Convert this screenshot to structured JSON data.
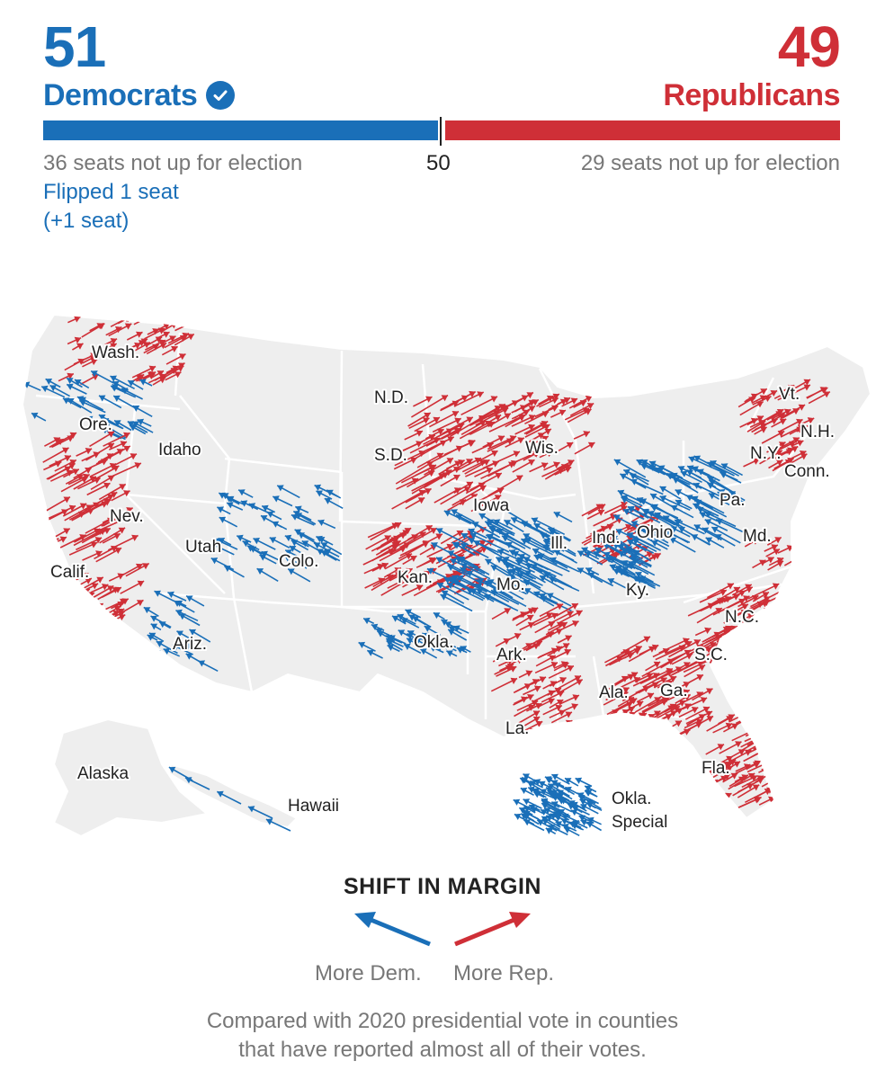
{
  "header": {
    "dem_count": "51",
    "dem_label": "Democrats",
    "rep_count": "49",
    "rep_label": "Republicans",
    "majority_mark": "50",
    "dem_not_up": "36 seats not up for election",
    "rep_not_up": "29 seats not up for election",
    "dem_flipped": "Flipped 1 seat",
    "dem_net": "(+1 seat)"
  },
  "colors": {
    "dem": "#1a6fb8",
    "rep": "#cf2f37",
    "land": "#eeeeee",
    "border": "#ffffff"
  },
  "map": {
    "labels": {
      "wash": "Wash.",
      "ore": "Ore.",
      "idaho": "Idaho",
      "nev": "Nev.",
      "calif": "Calif.",
      "utah": "Utah",
      "colo": "Colo.",
      "ariz": "Ariz.",
      "nd": "N.D.",
      "sd": "S.D.",
      "kan": "Kan.",
      "okla": "Okla.",
      "iowa": "Iowa",
      "mo": "Mo.",
      "ark": "Ark.",
      "la": "La.",
      "wis": "Wis.",
      "ill": "Ill.",
      "ind": "Ind.",
      "ohio": "Ohio",
      "ky": "Ky.",
      "ala": "Ala.",
      "ga": "Ga.",
      "fla": "Fla.",
      "sc": "S.C.",
      "nc": "N.C.",
      "md": "Md.",
      "pa": "Pa.",
      "ny": "N.Y.",
      "vt": "Vt.",
      "nh": "N.H.",
      "conn": "Conn.",
      "alaska": "Alaska",
      "hawaii": "Hawaii",
      "okla_special_1": "Okla.",
      "okla_special_2": "Special"
    },
    "dem_shift_states": [
      "Ore.",
      "Utah",
      "Colo.",
      "Ariz.",
      "Okla.",
      "Ill.",
      "Mo.",
      "Ohio",
      "Ky.",
      "Pa.",
      "Hawaii",
      "Okla. Special"
    ],
    "rep_shift_states": [
      "Wash.",
      "Calif.",
      "Nev.",
      "S.D.",
      "Kan.",
      "Iowa",
      "Wis.",
      "Ind.",
      "Ark.",
      "La.",
      "Ala.",
      "Ga.",
      "Fla.",
      "S.C.",
      "N.C.",
      "N.Y.",
      "Vt.",
      "N.H.",
      "Conn.",
      "Md."
    ]
  },
  "legend": {
    "title": "SHIFT IN MARGIN",
    "dem": "More Dem.",
    "rep": "More Rep."
  },
  "footnote": {
    "line1": "Compared with 2020 presidential vote in counties",
    "line2": "that have reported almost all of their votes."
  }
}
